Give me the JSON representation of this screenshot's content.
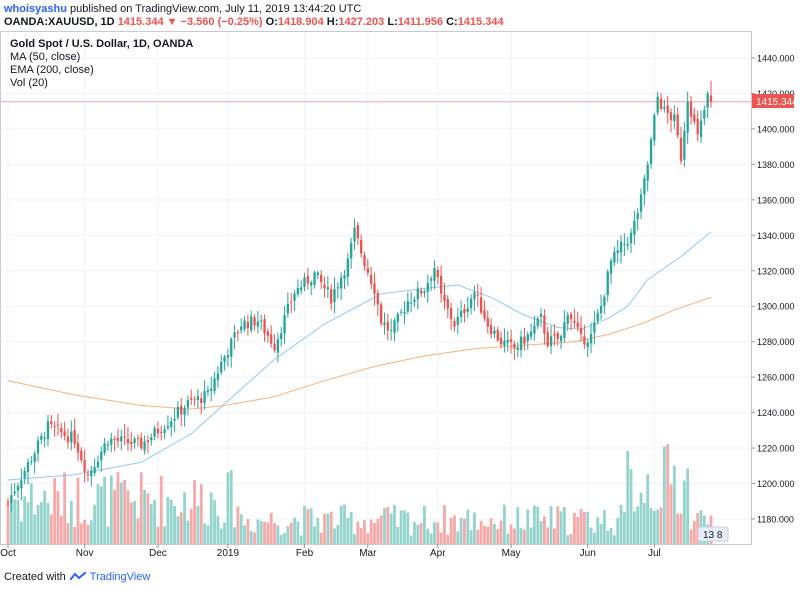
{
  "header": {
    "user": "whoisyashu",
    "published": "published on TradingView.com, July 11, 2019 13:44:20 UTC"
  },
  "symbol_line": {
    "symbol": "OANDA:XAUUSD, 1D",
    "open_value": "1415.344",
    "change": "▼ −3.560 (−0.25%)",
    "o_label": "O:",
    "o_value": "1418.904",
    "h_label": "H:",
    "h_value": "1427.203",
    "l_label": "L:",
    "l_value": "1411.956",
    "c_label": "C:",
    "c_value": "1415.344"
  },
  "legend": {
    "title": "Gold Spot / U.S. Dollar, 1D, OANDA",
    "ma": "MA (50, close)",
    "ema": "EMA (200, close)",
    "vol": "Vol (20)"
  },
  "footer": {
    "created_with": "Created with",
    "brand": "TradingView"
  },
  "price_tag": "1415.344",
  "vol_badge": "13 8",
  "colors": {
    "up": "#26a69a",
    "down": "#ef5350",
    "ma": "#90c8f0",
    "ema": "#f7b27a",
    "price_line": "#f2a3a3",
    "vol_up": "#94d4cd",
    "vol_down": "#f5a9a8"
  },
  "chart_data": {
    "type": "candlestick",
    "title": "Gold Spot / U.S. Dollar, 1D, OANDA",
    "y_axis": {
      "min": 1165,
      "max": 1445,
      "ticks": [
        1180,
        1200,
        1220,
        1240,
        1260,
        1280,
        1300,
        1320,
        1340,
        1360,
        1380,
        1400,
        1420,
        1440
      ]
    },
    "x_axis": {
      "labels": [
        {
          "label": "Oct",
          "day": 0
        },
        {
          "label": "Nov",
          "day": 23
        },
        {
          "label": "Dec",
          "day": 45
        },
        {
          "label": "2019",
          "day": 66
        },
        {
          "label": "Feb",
          "day": 89
        },
        {
          "label": "Mar",
          "day": 108
        },
        {
          "label": "Apr",
          "day": 129
        },
        {
          "label": "May",
          "day": 151
        },
        {
          "label": "Jun",
          "day": 174
        },
        {
          "label": "Jul",
          "day": 194
        }
      ],
      "total_days": 225
    },
    "price_key_points": [
      [
        0,
        1190
      ],
      [
        8,
        1218
      ],
      [
        12,
        1232
      ],
      [
        20,
        1225
      ],
      [
        24,
        1205
      ],
      [
        30,
        1225
      ],
      [
        40,
        1222
      ],
      [
        48,
        1235
      ],
      [
        54,
        1245
      ],
      [
        60,
        1250
      ],
      [
        64,
        1268
      ],
      [
        70,
        1290
      ],
      [
        75,
        1292
      ],
      [
        80,
        1278
      ],
      [
        86,
        1308
      ],
      [
        92,
        1318
      ],
      [
        97,
        1305
      ],
      [
        102,
        1325
      ],
      [
        104,
        1342
      ],
      [
        107,
        1325
      ],
      [
        110,
        1310
      ],
      [
        112,
        1292
      ],
      [
        115,
        1285
      ],
      [
        120,
        1303
      ],
      [
        125,
        1310
      ],
      [
        128,
        1322
      ],
      [
        130,
        1305
      ],
      [
        134,
        1290
      ],
      [
        136,
        1295
      ],
      [
        140,
        1308
      ],
      [
        144,
        1290
      ],
      [
        148,
        1280
      ],
      [
        152,
        1276
      ],
      [
        157,
        1285
      ],
      [
        160,
        1293
      ],
      [
        162,
        1280
      ],
      [
        166,
        1282
      ],
      [
        168,
        1298
      ],
      [
        172,
        1281
      ],
      [
        175,
        1283
      ],
      [
        178,
        1300
      ],
      [
        181,
        1325
      ],
      [
        184,
        1333
      ],
      [
        187,
        1340
      ],
      [
        190,
        1360
      ],
      [
        192,
        1380
      ],
      [
        195,
        1418
      ],
      [
        197,
        1410
      ],
      [
        200,
        1405
      ],
      [
        202,
        1384
      ],
      [
        204,
        1418
      ],
      [
        207,
        1395
      ],
      [
        210,
        1418
      ],
      [
        211,
        1415.344
      ]
    ],
    "ma_50_key_points": [
      [
        0,
        1202
      ],
      [
        20,
        1205
      ],
      [
        40,
        1212
      ],
      [
        55,
        1228
      ],
      [
        65,
        1245
      ],
      [
        80,
        1270
      ],
      [
        95,
        1290
      ],
      [
        105,
        1300
      ],
      [
        112,
        1307
      ],
      [
        125,
        1310
      ],
      [
        135,
        1312
      ],
      [
        145,
        1305
      ],
      [
        155,
        1295
      ],
      [
        165,
        1288
      ],
      [
        172,
        1287
      ],
      [
        180,
        1293
      ],
      [
        186,
        1300
      ],
      [
        192,
        1315
      ],
      [
        202,
        1328
      ],
      [
        211,
        1342
      ]
    ],
    "ema_200_key_points": [
      [
        0,
        1258
      ],
      [
        20,
        1250
      ],
      [
        40,
        1244
      ],
      [
        55,
        1242
      ],
      [
        65,
        1244
      ],
      [
        80,
        1249
      ],
      [
        95,
        1258
      ],
      [
        110,
        1266
      ],
      [
        125,
        1272
      ],
      [
        140,
        1276
      ],
      [
        155,
        1278
      ],
      [
        170,
        1280
      ],
      [
        180,
        1284
      ],
      [
        190,
        1290
      ],
      [
        200,
        1298
      ],
      [
        211,
        1305
      ]
    ],
    "last_close": 1415.344
  }
}
